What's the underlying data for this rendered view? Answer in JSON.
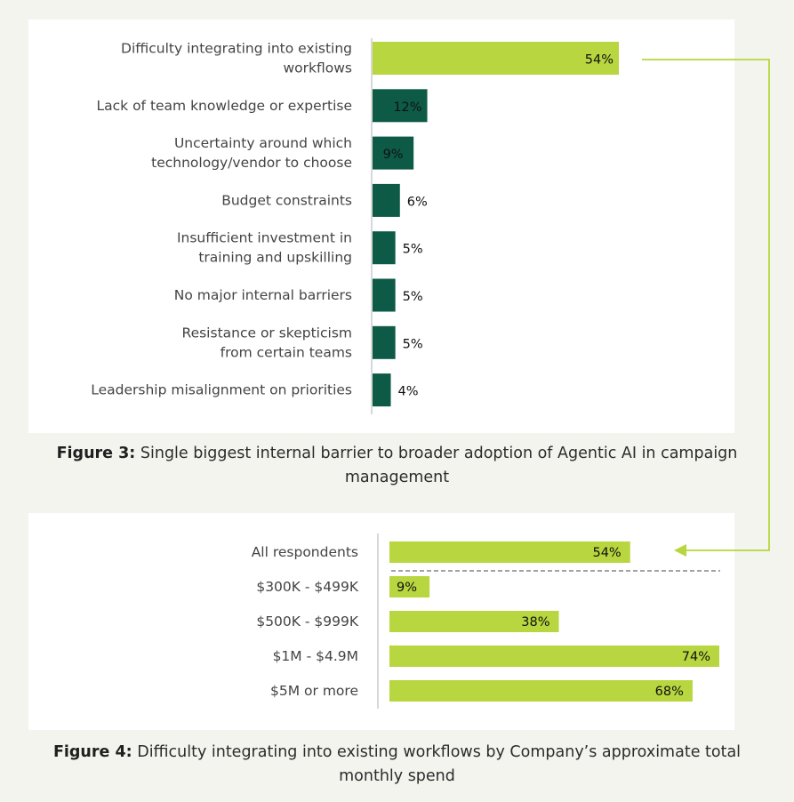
{
  "figure3": {
    "caption_label": "Figure 3:",
    "caption_text": "Single biggest internal barrier to broader adoption of Agentic AI in campaign management"
  },
  "figure4": {
    "caption_label": "Figure 4:",
    "caption_text": "Difficulty integrating into existing workflows by Company’s approximate total monthly spend"
  },
  "colors": {
    "lime": "#b7d63f",
    "dark_green": "#0d5a47",
    "axis": "#b0b0b0"
  },
  "chart_data": [
    {
      "type": "bar",
      "orientation": "horizontal",
      "categories": [
        [
          "Difficulty integrating into existing",
          "workflows"
        ],
        [
          "Lack of team knowledge or expertise"
        ],
        [
          "Uncertainty around which",
          "technology/vendor to choose"
        ],
        [
          "Budget constraints"
        ],
        [
          "Insufficient investment in",
          "training and upskilling"
        ],
        [
          "No major internal barriers"
        ],
        [
          "Resistance or skepticism",
          "from certain teams"
        ],
        [
          "Leadership misalignment on priorities"
        ]
      ],
      "values": [
        54,
        12,
        9,
        6,
        5,
        5,
        5,
        4
      ],
      "value_labels": [
        "54%",
        "12%",
        "9%",
        "6%",
        "5%",
        "5%",
        "5%",
        "4%"
      ],
      "highlight_index": 0,
      "xlim": [
        0,
        54
      ]
    },
    {
      "type": "bar",
      "orientation": "horizontal",
      "categories": [
        "All respondents",
        "$300K - $499K",
        "$500K - $999K",
        "$1M - $4.9M",
        "$5M or more"
      ],
      "values": [
        54,
        9,
        38,
        74,
        68
      ],
      "value_labels": [
        "54%",
        "9%",
        "38%",
        "74%",
        "68%"
      ],
      "xlim": [
        0,
        74
      ]
    }
  ]
}
